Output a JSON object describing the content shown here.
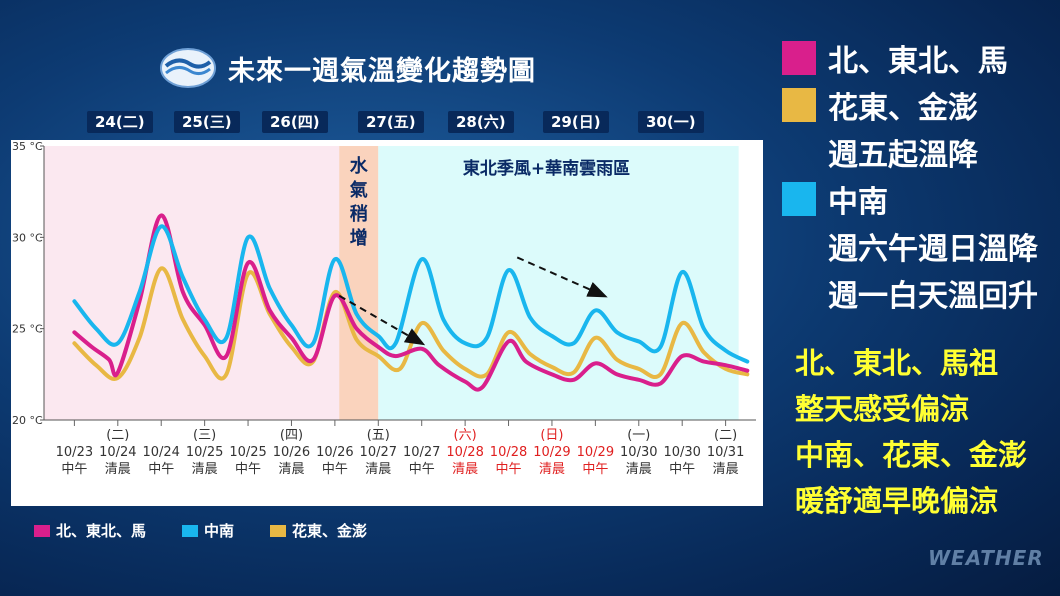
{
  "title": "未來一週氣溫變化趨勢圖",
  "day_tags": [
    "24(二)",
    "25(三)",
    "26(四)",
    "27(五)",
    "28(六)",
    "29(日)",
    "30(一)"
  ],
  "colors": {
    "north": "#d91f8c",
    "central_south": "#19b6ee",
    "east": "#e8b844",
    "bg_pink": "#fbe8f0",
    "bg_cyan": "#dcfbfb",
    "bg_orange": "#fad3bd"
  },
  "chart_data": {
    "type": "line",
    "ylim": [
      20,
      35
    ],
    "yticks": [
      "20 °C",
      "25 °C",
      "30 °C",
      "35 °C"
    ],
    "x": [
      "10/23 中午",
      "10/24 清晨",
      "10/24 中午",
      "10/25 清晨",
      "10/25 中午",
      "10/26 清晨",
      "10/26 中午",
      "10/27 清晨",
      "10/27 中午",
      "10/28 清晨",
      "10/28 中午",
      "10/29 清晨",
      "10/29 中午",
      "10/30 清晨",
      "10/30 中午",
      "10/31 清晨"
    ],
    "x_weekday": [
      "",
      "(二)",
      "",
      "(三)",
      "",
      "(四)",
      "",
      "(五)",
      "",
      "(六)",
      "",
      "(日)",
      "",
      "(一)",
      "",
      "(二)"
    ],
    "x_weekend_red": [
      false,
      false,
      false,
      false,
      false,
      false,
      false,
      false,
      false,
      true,
      true,
      true,
      true,
      false,
      false,
      false
    ],
    "x_date": [
      "10/23",
      "10/24",
      "10/24",
      "10/25",
      "10/25",
      "10/26",
      "10/26",
      "10/27",
      "10/27",
      "10/28",
      "10/28",
      "10/29",
      "10/29",
      "10/30",
      "10/30",
      "10/31"
    ],
    "x_time": [
      "中午",
      "清晨",
      "中午",
      "清晨",
      "中午",
      "清晨",
      "中午",
      "清晨",
      "中午",
      "清晨",
      "中午",
      "清晨",
      "中午",
      "清晨",
      "中午",
      "清晨"
    ],
    "series": [
      {
        "name": "北、東北、馬",
        "key": "north",
        "x": [
          0,
          0.4,
          0.8,
          1,
          1.5,
          2,
          2.5,
          3,
          3.5,
          4,
          4.5,
          5,
          5.5,
          6,
          6.5,
          7,
          7.4,
          8,
          8.4,
          9,
          9.4,
          10,
          10.4,
          11,
          11.5,
          12,
          12.5,
          13,
          13.5,
          14,
          14.5,
          15,
          15.5
        ],
        "y": [
          24.8,
          24.0,
          23.3,
          22.6,
          26.5,
          31.2,
          27.0,
          25.2,
          23.5,
          28.6,
          26.0,
          24.5,
          23.3,
          26.8,
          25.0,
          24.0,
          23.5,
          23.9,
          23.0,
          22.1,
          21.8,
          24.3,
          23.2,
          22.5,
          22.2,
          23.1,
          22.5,
          22.2,
          22.0,
          23.5,
          23.2,
          23.0,
          22.7
        ]
      },
      {
        "name": "中南",
        "key": "central_south",
        "x": [
          0,
          0.5,
          1,
          1.5,
          2,
          2.5,
          3,
          3.5,
          4,
          4.5,
          5,
          5.5,
          6,
          6.5,
          7,
          7.4,
          8,
          8.5,
          9,
          9.5,
          10,
          10.5,
          11,
          11.5,
          12,
          12.5,
          13,
          13.5,
          14,
          14.5,
          15,
          15.5
        ],
        "y": [
          26.5,
          25.0,
          24.2,
          27.0,
          30.6,
          27.8,
          25.5,
          24.5,
          30.0,
          27.2,
          25.2,
          24.2,
          28.8,
          25.8,
          24.6,
          24.2,
          28.8,
          25.5,
          24.2,
          24.5,
          28.2,
          25.6,
          24.6,
          24.2,
          26.0,
          24.8,
          24.3,
          24.0,
          28.1,
          25.0,
          23.8,
          23.2
        ]
      },
      {
        "name": "花東、金澎",
        "key": "east",
        "x": [
          0,
          0.5,
          1,
          1.5,
          2,
          2.5,
          3,
          3.5,
          4,
          4.5,
          5,
          5.5,
          6,
          6.5,
          7,
          7.5,
          8,
          8.5,
          9,
          9.5,
          10,
          10.5,
          11,
          11.5,
          12,
          12.5,
          13,
          13.5,
          14,
          14.5,
          15,
          15.5
        ],
        "y": [
          24.2,
          23.0,
          22.3,
          24.5,
          28.3,
          25.5,
          23.5,
          22.5,
          28.0,
          25.8,
          24.0,
          23.2,
          27.0,
          24.4,
          23.5,
          22.8,
          25.3,
          23.8,
          22.8,
          22.5,
          24.8,
          23.6,
          22.9,
          22.6,
          24.5,
          23.3,
          22.8,
          22.5,
          25.3,
          23.7,
          22.8,
          22.5
        ]
      }
    ],
    "regions": [
      {
        "label": "",
        "x0": -0.7,
        "x1": 6.1,
        "color": "pink"
      },
      {
        "label": "水氣稍增",
        "x0": 6.1,
        "x1": 7.0,
        "color": "orange"
      },
      {
        "label": "東北季風+華南雲雨區",
        "x0": 7.0,
        "x1": 15.3,
        "color": "cyan"
      }
    ],
    "arrows": [
      {
        "x0": 6.1,
        "y0": 26.8,
        "x1": 8.0,
        "y1": 24.2
      },
      {
        "x0": 10.2,
        "y0": 28.9,
        "x1": 12.2,
        "y1": 26.8
      }
    ]
  },
  "legend": [
    {
      "label": "北、東北、馬",
      "color": "#d91f8c"
    },
    {
      "label": "中南",
      "color": "#19b6ee"
    },
    {
      "label": "花東、金澎",
      "color": "#e8b844"
    }
  ],
  "right_notes": [
    {
      "text": "北、東北、馬",
      "swatch": "#d91f8c"
    },
    {
      "text": "花東、金澎",
      "swatch": "#e8b844"
    },
    {
      "text": "週五起溫降",
      "swatch": ""
    },
    {
      "text": "中南",
      "swatch": "#19b6ee"
    },
    {
      "text": "週六午週日溫降",
      "swatch": ""
    },
    {
      "text": "週一白天溫回升",
      "swatch": ""
    }
  ],
  "yellow_notes": [
    "北、東北、馬祖",
    "整天感受偏涼",
    "中南、花東、金澎",
    "暖舒適早晚偏涼"
  ],
  "watermark": "WEATHER"
}
